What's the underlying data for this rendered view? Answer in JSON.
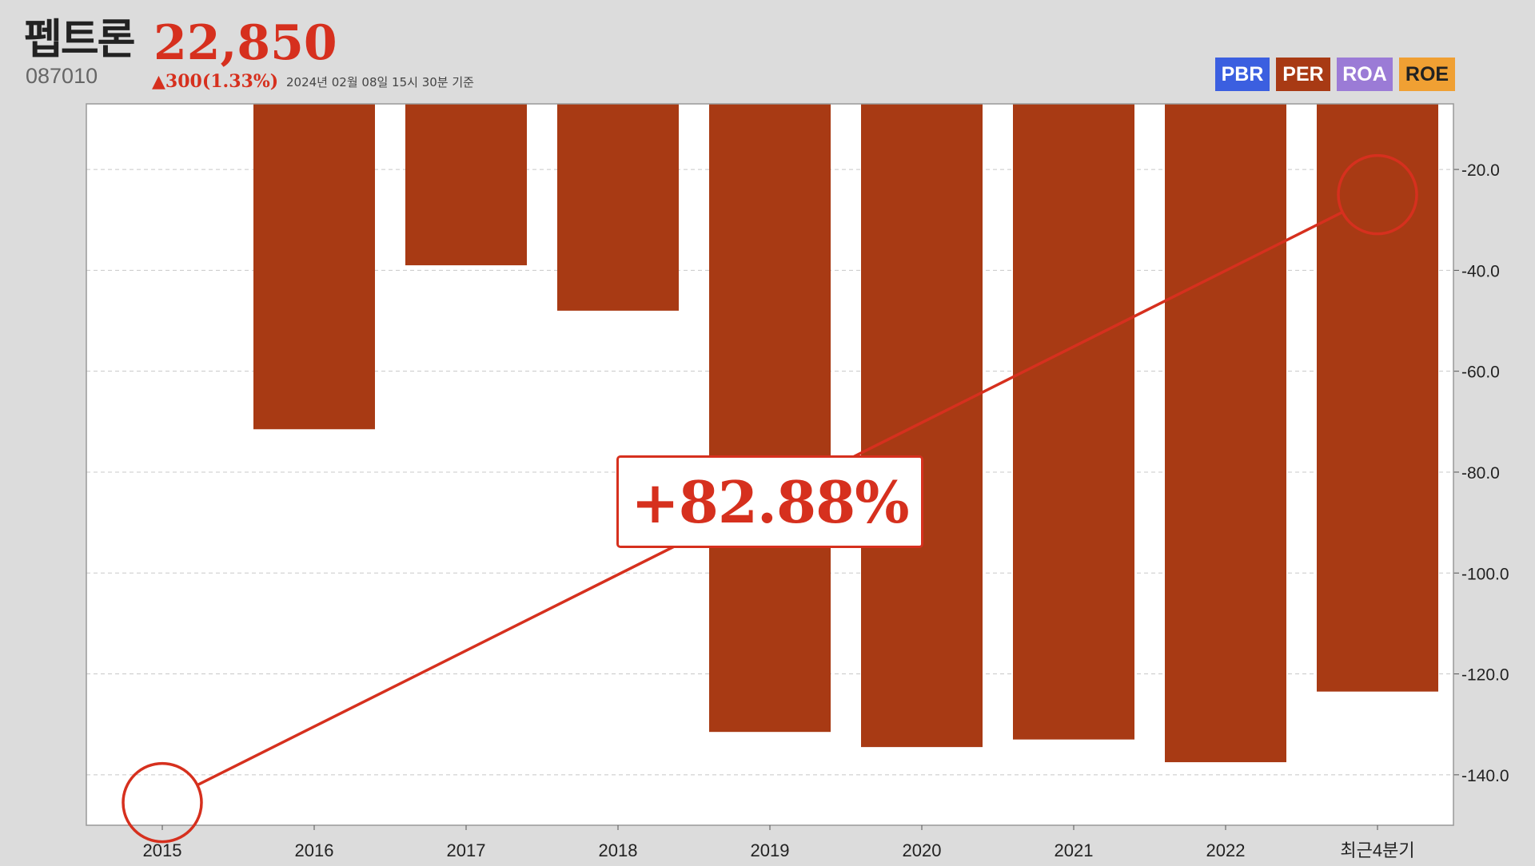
{
  "header": {
    "company_name": "펩트론",
    "price": "22,850",
    "ticker": "087010",
    "change": "▲300(1.33%)",
    "timestamp": "2024년 02월 08일 15시 30분 기준"
  },
  "tabs": [
    {
      "label": "PBR",
      "color": "#3b5fe0"
    },
    {
      "label": "PER",
      "color": "#a83a14"
    },
    {
      "label": "ROA",
      "color": "#9b7bd6"
    },
    {
      "label": "ROE",
      "color": "#f0a033"
    }
  ],
  "callout": {
    "text": "+82.88%"
  },
  "colors": {
    "bar": "#a83a14",
    "trend": "#d6301e"
  },
  "chart_data": {
    "type": "bar",
    "categories": [
      "2015",
      "2016",
      "2017",
      "2018",
      "2019",
      "2020",
      "2021",
      "2022",
      "최근4분기"
    ],
    "values": [
      null,
      -71.5,
      -39.0,
      -48.0,
      -131.5,
      -134.5,
      -133.0,
      -137.5,
      -123.5
    ],
    "ylim": [
      -150,
      -7
    ],
    "yticks": [
      -20,
      -40,
      -60,
      -80,
      -100,
      -120,
      -140
    ],
    "ytick_labels": [
      "-20.0",
      "-40.0",
      "-60.0",
      "-80.0",
      "-100.0",
      "-120.0",
      "-140.0"
    ],
    "y_axis_side": "right",
    "grid": true,
    "trend_line": {
      "from_category": "2015",
      "from_value": -145.5,
      "to_category": "최근4분기",
      "to_value": -25.0
    }
  }
}
